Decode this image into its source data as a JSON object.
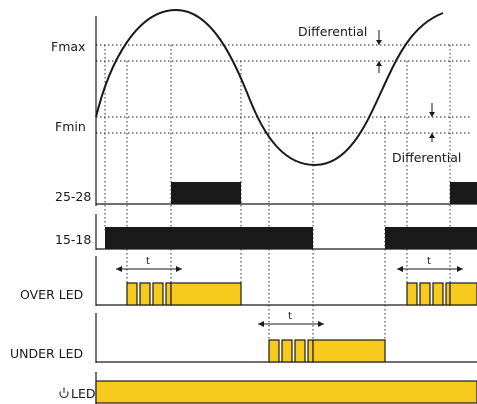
{
  "labels": {
    "fmax": "Fmax",
    "fmin": "Fmin",
    "differential_top": "Differential",
    "differential_bottom": "Differential",
    "relay_25_28": "25-28",
    "relay_15_18": "15-18",
    "over_led": "OVER LED",
    "under_led": "UNDER LED",
    "power_led": "LED",
    "delay_over_1": "t",
    "delay_over_2": "t",
    "delay_under": "t"
  },
  "icons": {
    "power": "power-icon"
  },
  "colors": {
    "led_fill": "#f6cb1d",
    "line": "#1a1a1a",
    "relay_bar": "#1a1a1a"
  }
}
